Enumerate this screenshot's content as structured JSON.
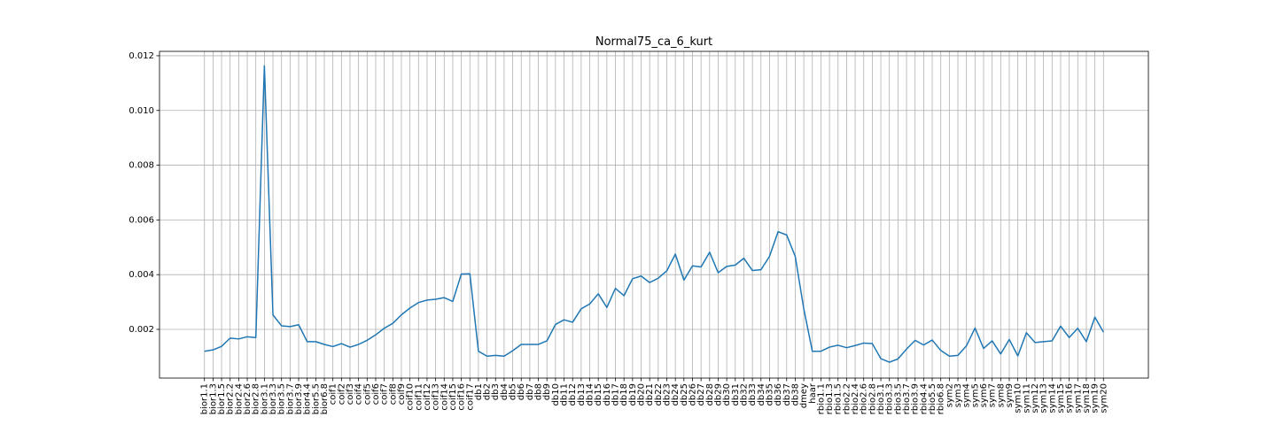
{
  "chart_data": {
    "type": "line",
    "title": "Normal75_ca_6_kurt",
    "xlabel": "",
    "ylabel": "",
    "grid": true,
    "ylim": [
      0.00022,
      0.01216
    ],
    "yticks": [
      0.002,
      0.004,
      0.006,
      0.008,
      0.01,
      0.012
    ],
    "ytick_labels": [
      "0.002",
      "0.004",
      "0.006",
      "0.008",
      "0.010",
      "0.012"
    ],
    "categories": [
      "bior1.1",
      "bior1.3",
      "bior1.5",
      "bior2.2",
      "bior2.4",
      "bior2.6",
      "bior2.8",
      "bior3.1",
      "bior3.3",
      "bior3.5",
      "bior3.7",
      "bior3.9",
      "bior4.4",
      "bior5.5",
      "bior6.8",
      "coif1",
      "coif2",
      "coif3",
      "coif4",
      "coif5",
      "coif6",
      "coif7",
      "coif8",
      "coif9",
      "coif10",
      "coif11",
      "coif12",
      "coif13",
      "coif14",
      "coif15",
      "coif16",
      "coif17",
      "db1",
      "db2",
      "db3",
      "db4",
      "db5",
      "db6",
      "db7",
      "db8",
      "db9",
      "db10",
      "db11",
      "db12",
      "db13",
      "db14",
      "db15",
      "db16",
      "db17",
      "db18",
      "db19",
      "db20",
      "db21",
      "db22",
      "db23",
      "db24",
      "db25",
      "db26",
      "db27",
      "db28",
      "db29",
      "db30",
      "db31",
      "db32",
      "db33",
      "db34",
      "db35",
      "db36",
      "db37",
      "db38",
      "dmey",
      "haar",
      "rbio1.1",
      "rbio1.3",
      "rbio1.5",
      "rbio2.2",
      "rbio2.4",
      "rbio2.6",
      "rbio2.8",
      "rbio3.1",
      "rbio3.3",
      "rbio3.5",
      "rbio3.7",
      "rbio3.9",
      "rbio4.4",
      "rbio5.5",
      "rbio6.8",
      "sym2",
      "sym3",
      "sym4",
      "sym5",
      "sym6",
      "sym7",
      "sym8",
      "sym9",
      "sym10",
      "sym11",
      "sym12",
      "sym13",
      "sym14",
      "sym15",
      "sym16",
      "sym17",
      "sym18",
      "sym19",
      "sym20"
    ],
    "series": [
      {
        "name": "",
        "color": "#1f77b4",
        "values": [
          0.0012,
          0.00125,
          0.00138,
          0.00168,
          0.00165,
          0.00173,
          0.0017,
          0.01163,
          0.00253,
          0.00213,
          0.0021,
          0.00217,
          0.00155,
          0.00155,
          0.00145,
          0.00137,
          0.00148,
          0.00135,
          0.00145,
          0.0016,
          0.0018,
          0.00204,
          0.00222,
          0.00253,
          0.00278,
          0.00298,
          0.00307,
          0.0031,
          0.00316,
          0.00302,
          0.00402,
          0.00403,
          0.0012,
          0.00102,
          0.00105,
          0.00102,
          0.00122,
          0.00145,
          0.00145,
          0.00145,
          0.00158,
          0.00218,
          0.00235,
          0.00226,
          0.00275,
          0.00293,
          0.0033,
          0.0028,
          0.0035,
          0.00323,
          0.00385,
          0.00395,
          0.00371,
          0.00387,
          0.00414,
          0.00475,
          0.0038,
          0.00432,
          0.00428,
          0.00482,
          0.00407,
          0.0043,
          0.00435,
          0.0046,
          0.00415,
          0.00418,
          0.00467,
          0.00557,
          0.00545,
          0.00467,
          0.00275,
          0.0012,
          0.0012,
          0.00135,
          0.00142,
          0.00133,
          0.00141,
          0.0015,
          0.00148,
          0.00093,
          0.0008,
          0.00092,
          0.00128,
          0.0016,
          0.00143,
          0.00161,
          0.00123,
          0.00102,
          0.00105,
          0.0014,
          0.00205,
          0.0013,
          0.00158,
          0.0011,
          0.00163,
          0.00103,
          0.00188,
          0.00152,
          0.00155,
          0.00158,
          0.00212,
          0.0017,
          0.00204,
          0.00155,
          0.00245,
          0.0019
        ]
      }
    ]
  }
}
